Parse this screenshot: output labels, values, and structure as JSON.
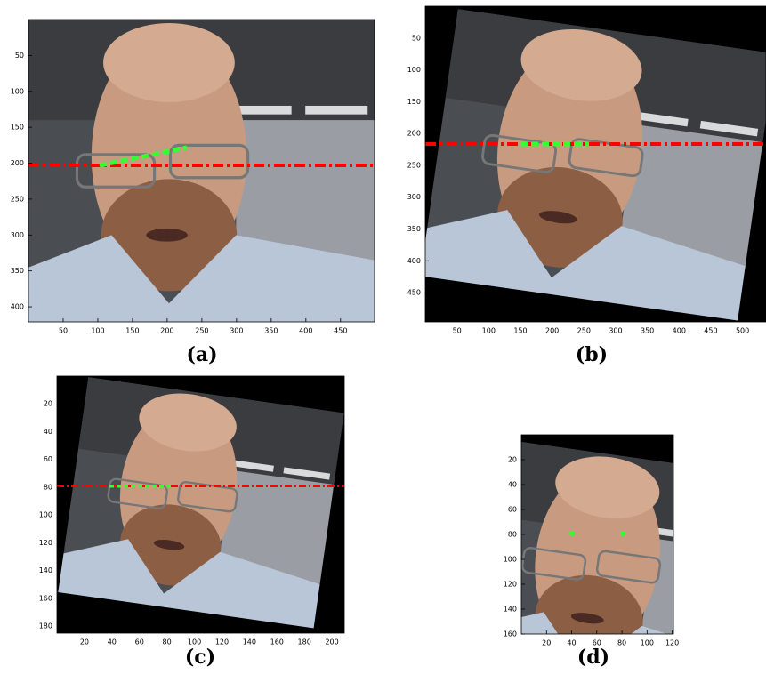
{
  "panels": [
    {
      "label": "(a)",
      "xlim": [
        0,
        499
      ],
      "ylim": [
        0,
        421
      ],
      "xticks": [
        50,
        100,
        150,
        200,
        250,
        300,
        350,
        400,
        450
      ],
      "yticks": [
        50,
        100,
        150,
        200,
        250,
        300,
        350,
        400
      ]
    },
    {
      "label": "(b)",
      "xlim": [
        0,
        537
      ],
      "ylim": [
        0,
        496
      ],
      "xticks": [
        50,
        100,
        150,
        200,
        250,
        300,
        350,
        400,
        450,
        500
      ],
      "yticks": [
        50,
        100,
        150,
        200,
        250,
        300,
        350,
        400,
        450
      ]
    },
    {
      "label": "(c)",
      "xlim": [
        0,
        209
      ],
      "ylim": [
        0,
        185
      ],
      "xticks": [
        20,
        40,
        60,
        80,
        100,
        120,
        140,
        160,
        180,
        200
      ],
      "yticks": [
        20,
        40,
        60,
        80,
        100,
        120,
        140,
        160,
        180
      ]
    },
    {
      "label": "(d)",
      "xlim": [
        0,
        121
      ],
      "ylim": [
        0,
        160
      ],
      "xticks": [
        20,
        40,
        60,
        80,
        100,
        120
      ],
      "yticks": [
        20,
        40,
        60,
        80,
        100,
        120,
        140,
        160
      ]
    }
  ]
}
